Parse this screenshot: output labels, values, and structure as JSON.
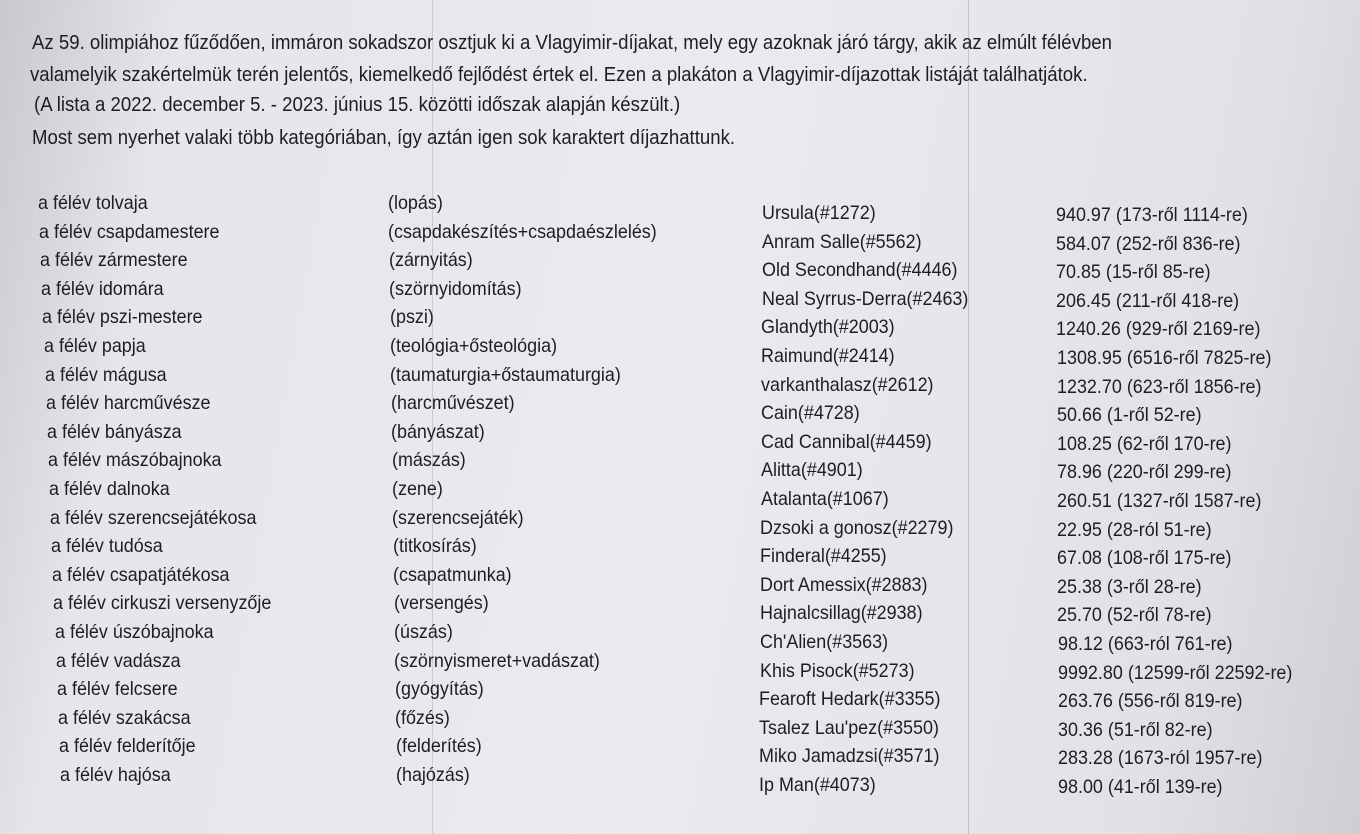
{
  "intro": [
    "Az 59. olimpiához fűződően, immáron sokadszor osztjuk ki a Vlagyimir-díjakat, mely egy azoknak járó tárgy, akik az elmúlt félévben",
    "valamelyik szakértelmük terén jelentős, kiemelkedő fejlődést értek el. Ezen a plakáton a Vlagyimir-díjazottak listáját találhatjátok.",
    "(A lista a 2022. december 5. - 2023. június 15. közötti időszak alapján készült.)",
    "Most sem nyerhet valaki több kategóriában, így aztán igen sok karaktert díjazhattunk."
  ],
  "table": {
    "rows": [
      [
        "a félév tolvaja",
        "(lopás)",
        "Ursula(#1272)",
        "940.97 (173-ről 1114-re)"
      ],
      [
        "a félév csapdamestere",
        "(csapdakészítés+csapdaészlelés)",
        "Anram Salle(#5562)",
        "584.07 (252-ről 836-re)"
      ],
      [
        "a félév zármestere",
        "(zárnyitás)",
        "Old Secondhand(#4446)",
        "70.85 (15-ről 85-re)"
      ],
      [
        "a félév idomára",
        "(szörnyidomítás)",
        "Neal Syrrus-Derra(#2463)",
        "206.45 (211-ről 418-re)"
      ],
      [
        "a félév pszi-mestere",
        "(pszi)",
        "Glandyth(#2003)",
        "1240.26 (929-ről 2169-re)"
      ],
      [
        "a félév papja",
        "(teológia+ősteológia)",
        "Raimund(#2414)",
        "1308.95 (6516-ről 7825-re)"
      ],
      [
        "a félév mágusa",
        "(taumaturgia+őstaumaturgia)",
        "varkanthalasz(#2612)",
        "1232.70 (623-ről 1856-re)"
      ],
      [
        "a félév harcművésze",
        "(harcművészet)",
        "Cain(#4728)",
        "50.66 (1-ről 52-re)"
      ],
      [
        "a félév bányásza",
        "(bányászat)",
        "Cad Cannibal(#4459)",
        "108.25 (62-ről 170-re)"
      ],
      [
        "a félév mászóbajnoka",
        "(mászás)",
        "Alitta(#4901)",
        "78.96 (220-ről 299-re)"
      ],
      [
        "a félév dalnoka",
        "(zene)",
        "Atalanta(#1067)",
        "260.51 (1327-ről 1587-re)"
      ],
      [
        "a félév szerencsejátékosa",
        "(szerencsejáték)",
        "Dzsoki a gonosz(#2279)",
        "22.95 (28-ról 51-re)"
      ],
      [
        "a félév tudósa",
        "(titkosírás)",
        "Finderal(#4255)",
        "67.08 (108-ről 175-re)"
      ],
      [
        "a félév csapatjátékosa",
        "(csapatmunka)",
        "Dort Amessix(#2883)",
        "25.38 (3-ről 28-re)"
      ],
      [
        "a félév cirkuszi versenyzője",
        "(versengés)",
        "Hajnalcsillag(#2938)",
        "25.70 (52-ről 78-re)"
      ],
      [
        "a félév úszóbajnoka",
        "(úszás)",
        "Ch'Alien(#3563)",
        "98.12 (663-ról 761-re)"
      ],
      [
        "a félév vadásza",
        "(szörnyismeret+vadászat)",
        "Khis Pisock(#5273)",
        "9992.80 (12599-ről 22592-re)"
      ],
      [
        "a félév felcsere",
        "(gyógyítás)",
        "Fearoft Hedark(#3355)",
        "263.76 (556-ről 819-re)"
      ],
      [
        "a félév szakácsa",
        "(főzés)",
        "Tsalez Lau'pez(#3550)",
        "30.36 (51-ről 82-re)"
      ],
      [
        "a félév felderítője",
        "(felderítés)",
        "Miko Jamadzsi(#3571)",
        "283.28 (1673-ról 1957-re)"
      ],
      [
        "a félév hajósa",
        "(hajózás)",
        "Ip Man(#4073)",
        "98.00 (41-ről 139-re)"
      ]
    ]
  }
}
